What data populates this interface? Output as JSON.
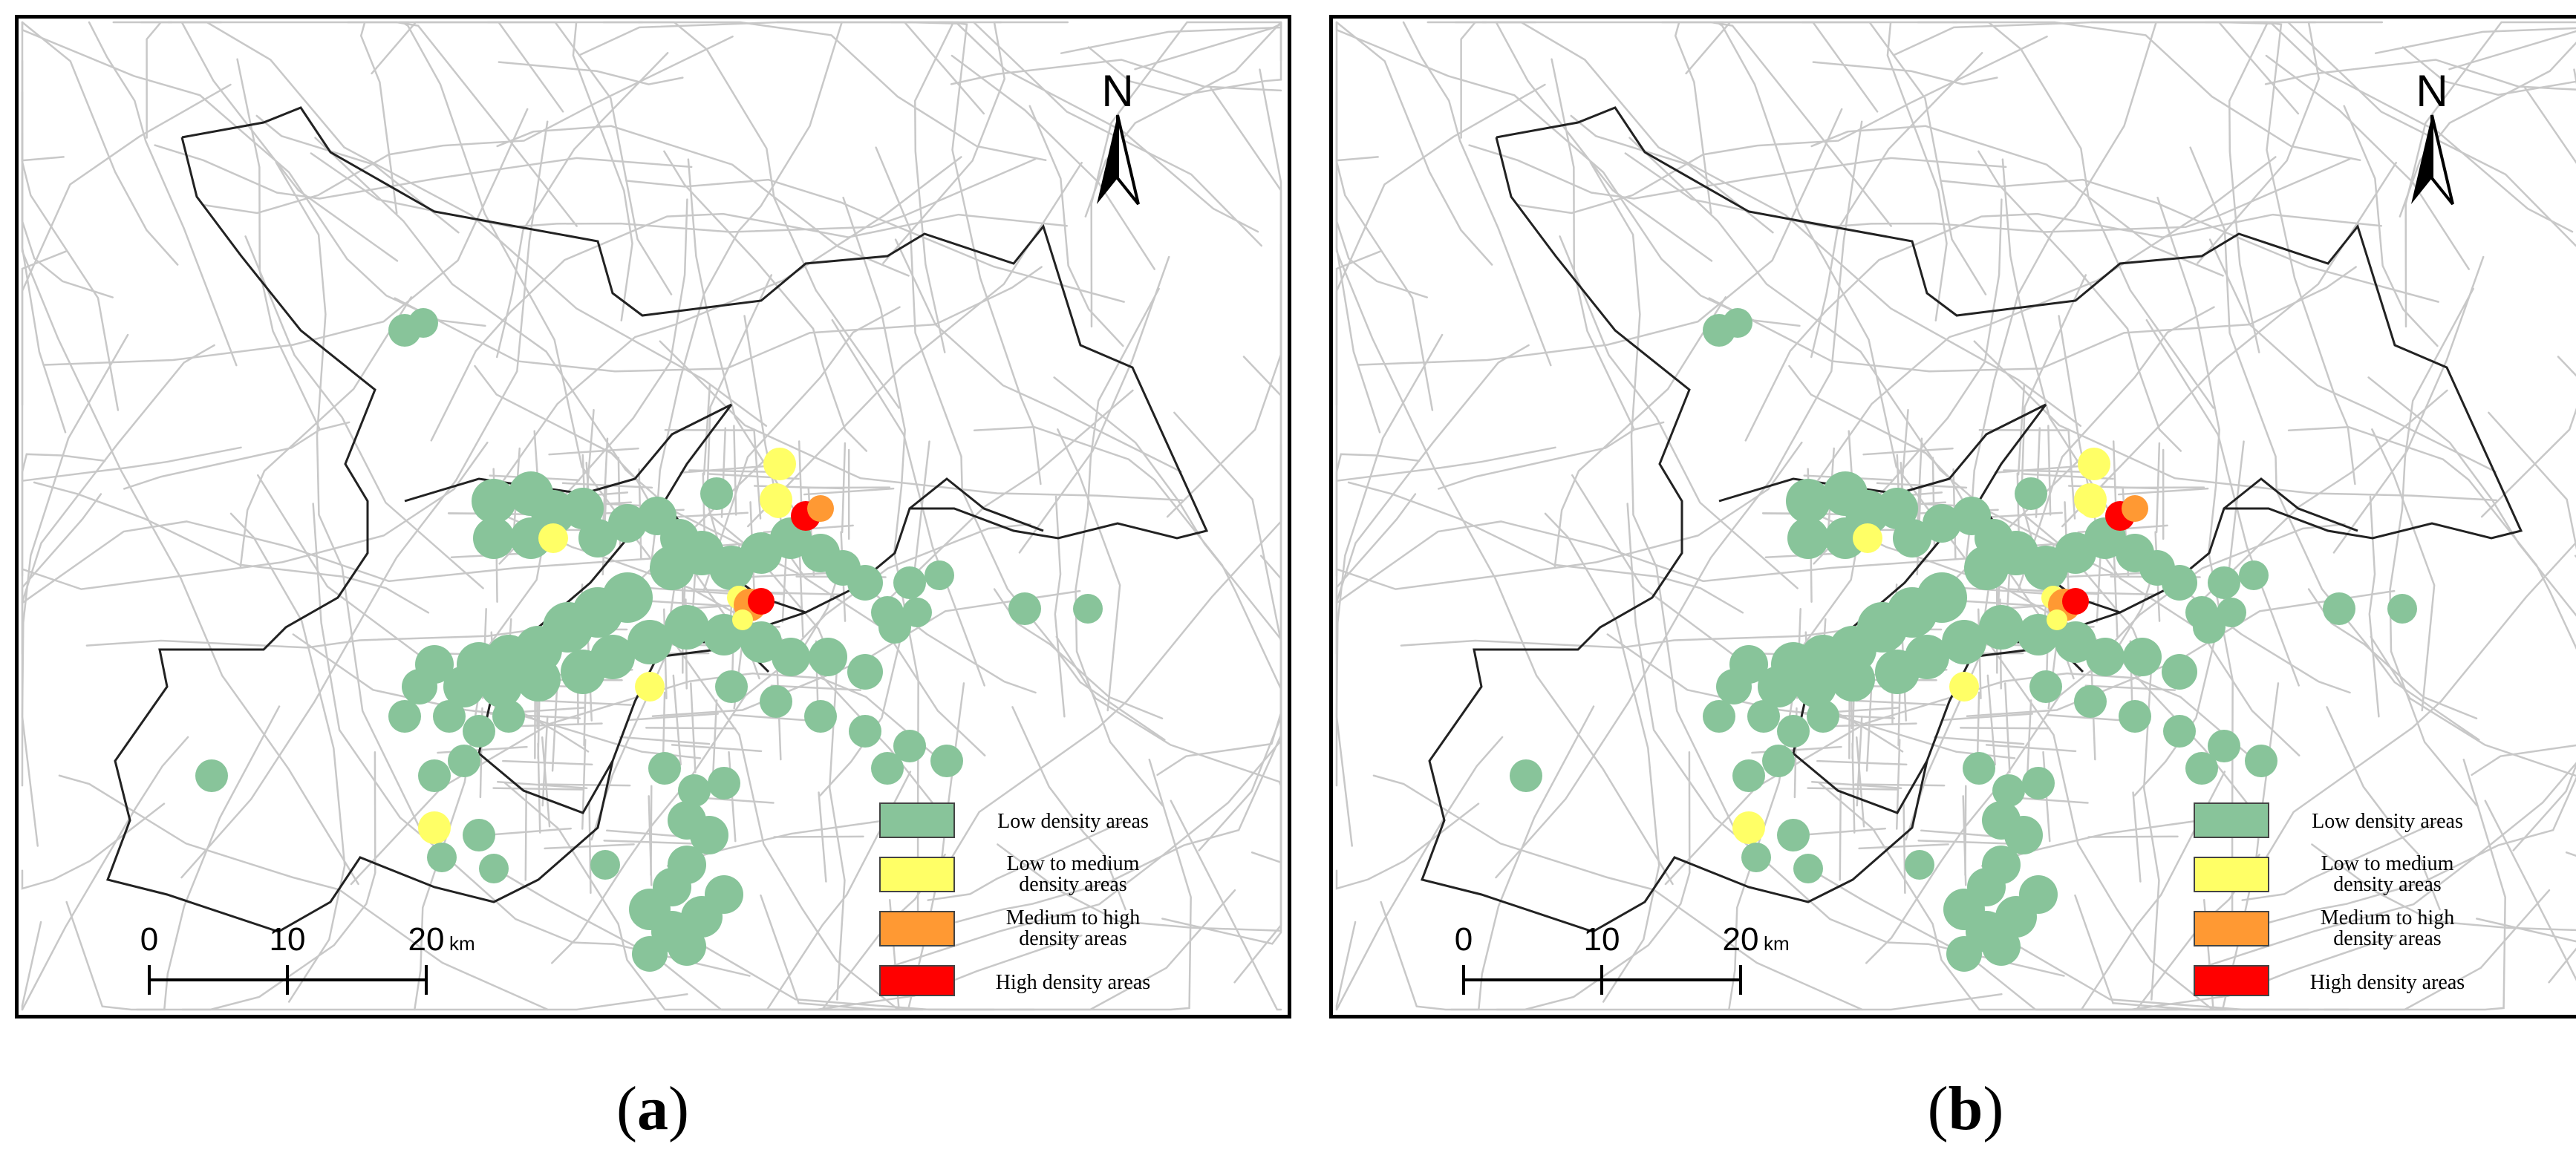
{
  "panels": [
    {
      "id": "a",
      "label": "a"
    },
    {
      "id": "b",
      "label": "b"
    }
  ],
  "north_label": "N",
  "scale_bar": {
    "ticks": [
      "0",
      "10",
      "20"
    ],
    "unit": "km"
  },
  "legend": [
    {
      "label_lines": [
        "Low density areas"
      ],
      "color": "#88c49a"
    },
    {
      "label_lines": [
        "Low to medium",
        "density areas"
      ],
      "color": "#ffff66"
    },
    {
      "label_lines": [
        "Medium to high",
        "density areas"
      ],
      "color": "#ff9933"
    },
    {
      "label_lines": [
        "High density areas"
      ],
      "color": "#ff0000"
    }
  ],
  "colors": {
    "roads": "#c8c8c8",
    "boundary": "#222222",
    "low": "#88c49a",
    "low_medium": "#ffff66",
    "medium_high": "#ff9933",
    "high": "#ff0000"
  }
}
